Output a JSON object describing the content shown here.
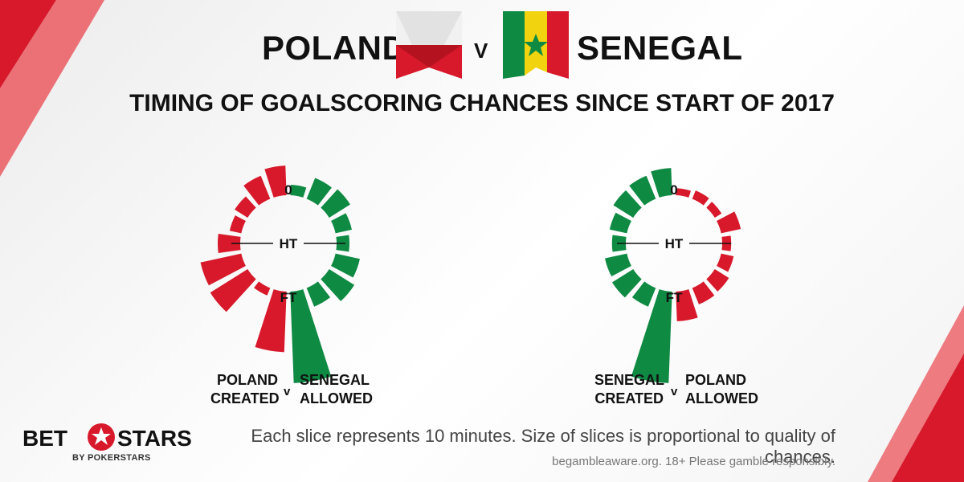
{
  "header": {
    "team_left": "POLAND",
    "vs": "V",
    "team_right": "SENEGAL"
  },
  "subtitle": "TIMING OF GOALSCORING CHANCES SINCE START OF 2017",
  "colors": {
    "poland_red": "#d7192b",
    "senegal_green": "#0e8a43",
    "senegal_yellow": "#f2d30f"
  },
  "chart_data": [
    {
      "type": "radial-bar",
      "title": "",
      "markers": {
        "top": "0",
        "mid": "HT",
        "bottom": "FT"
      },
      "series": [
        {
          "name": "POLAND CREATED",
          "side": "left",
          "color": "#d7192b",
          "values": [
            0.55,
            0.45,
            0.25,
            0.18,
            0.4,
            0.8,
            0.85,
            0.1,
            0.65
          ]
        },
        {
          "name": "SENEGAL ALLOWED",
          "side": "right",
          "color": "#0e8a43",
          "values": [
            0.15,
            0.4,
            0.45,
            0.28,
            0.2,
            0.45,
            0.55,
            0.35,
            1.0
          ]
        }
      ],
      "caption": {
        "left_line1": "POLAND",
        "left_line2": "CREATED",
        "v": "v",
        "right_line1": "SENEGAL",
        "right_line2": "ALLOWED"
      }
    },
    {
      "type": "radial-bar",
      "title": "",
      "markers": {
        "top": "0",
        "mid": "HT",
        "bottom": "FT"
      },
      "series": [
        {
          "name": "SENEGAL CREATED",
          "side": "left",
          "color": "#0e8a43",
          "values": [
            0.5,
            0.45,
            0.42,
            0.3,
            0.22,
            0.4,
            0.45,
            0.35,
            1.0
          ]
        },
        {
          "name": "POLAND ALLOWED",
          "side": "right",
          "color": "#d7192b",
          "values": [
            0.08,
            0.12,
            0.1,
            0.35,
            0.12,
            0.2,
            0.28,
            0.3,
            0.3
          ]
        }
      ],
      "caption": {
        "left_line1": "SENEGAL",
        "left_line2": "CREATED",
        "v": "v",
        "right_line1": "POLAND",
        "right_line2": "ALLOWED"
      }
    }
  ],
  "footer": {
    "note": "Each slice represents 10 minutes. Size of slices is proportional to quality of chances.",
    "disclaimer": "begambleaware.org.  18+ Please gamble responsibly."
  },
  "logo": {
    "word1": "BET",
    "word2": "STARS",
    "sub": "BY POKERSTARS"
  }
}
